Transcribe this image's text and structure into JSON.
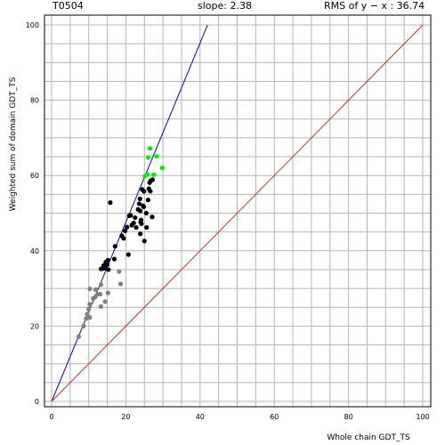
{
  "header": {
    "target": "T0504",
    "slope": "slope: 2.38",
    "rms": "RMS of  y − x : 36.74"
  },
  "chart_data": {
    "type": "scatter",
    "title": "",
    "xlabel": "Whole chain GDT_TS",
    "ylabel": "Weighted sum of domain GDT_TS",
    "xlim": [
      0,
      100
    ],
    "ylim": [
      0,
      100
    ],
    "x_ticks": [
      0,
      20,
      40,
      60,
      80,
      100
    ],
    "y_ticks": [
      0,
      20,
      40,
      60,
      80,
      100
    ],
    "grid": true,
    "colors": {
      "grid": "#b4b4b4",
      "fit_line": "#0000cc",
      "identity_line": "#cc3322",
      "gray": "#808080",
      "black": "#000000",
      "green": "#00ee00"
    },
    "lines": [
      {
        "name": "fit",
        "slope": 2.38,
        "x": [
          0,
          42
        ],
        "color": "#0000cc"
      },
      {
        "name": "identity",
        "slope": 1,
        "x": [
          0,
          100
        ],
        "color": "#cc3322"
      }
    ],
    "series": [
      {
        "color": "#808080",
        "points": [
          [
            7.3,
            17.2
          ],
          [
            8.6,
            20
          ],
          [
            9.3,
            22
          ],
          [
            9.6,
            23.2
          ],
          [
            10,
            24.5
          ],
          [
            10.3,
            22.3
          ],
          [
            10.3,
            25.8
          ],
          [
            11.2,
            27.3
          ],
          [
            11.8,
            27.8
          ],
          [
            11.9,
            29.7
          ],
          [
            12.4,
            28.5
          ],
          [
            13.1,
            28.5
          ],
          [
            13.3,
            31
          ],
          [
            13.3,
            25.2
          ],
          [
            14.4,
            26.5
          ],
          [
            10.3,
            29.9
          ],
          [
            15.2,
            28.8
          ],
          [
            18.2,
            34.5
          ],
          [
            18.6,
            31.2
          ]
        ]
      },
      {
        "color": "#000000",
        "points": [
          [
            13.3,
            35.2
          ],
          [
            13.8,
            35.3
          ],
          [
            14,
            36.1
          ],
          [
            14.4,
            35.4
          ],
          [
            14.6,
            37
          ],
          [
            15,
            36.3
          ],
          [
            15.2,
            37.5
          ],
          [
            15.3,
            35
          ],
          [
            16.9,
            37.8
          ],
          [
            17.1,
            41.2
          ],
          [
            15.8,
            52.8
          ],
          [
            18.9,
            44
          ],
          [
            19.4,
            43.3
          ],
          [
            19.8,
            45.3
          ],
          [
            20.3,
            46.3
          ],
          [
            20.7,
            39
          ],
          [
            20.9,
            49.3
          ],
          [
            21.3,
            49.4
          ],
          [
            21.6,
            46.8
          ],
          [
            22.1,
            47.4
          ],
          [
            22.5,
            48.8
          ],
          [
            22.8,
            46.2
          ],
          [
            23.3,
            51
          ],
          [
            23.6,
            52.5
          ],
          [
            23.8,
            53.8
          ],
          [
            23.9,
            50.6
          ],
          [
            23.9,
            44.5
          ],
          [
            24,
            47.6
          ],
          [
            24.1,
            48.2
          ],
          [
            24.2,
            47.2
          ],
          [
            24.6,
            52
          ],
          [
            24.8,
            51.7
          ],
          [
            24.9,
            55.8
          ],
          [
            24.4,
            56.3
          ],
          [
            25,
            42.6
          ],
          [
            25.5,
            50
          ],
          [
            25.6,
            46.2
          ],
          [
            26,
            53.5
          ],
          [
            26.2,
            56.5
          ],
          [
            26.4,
            58.1
          ],
          [
            26.6,
            55.8
          ],
          [
            26.7,
            58.6
          ],
          [
            27.2,
            58.9
          ],
          [
            27.1,
            49
          ]
        ]
      },
      {
        "color": "#00ee00",
        "points": [
          [
            25.1,
            59.8
          ],
          [
            25.8,
            60.3
          ],
          [
            26.5,
            67.2
          ],
          [
            26,
            64.8
          ],
          [
            27.5,
            60.2
          ],
          [
            28.3,
            65.1
          ],
          [
            29.8,
            62
          ]
        ]
      }
    ]
  }
}
